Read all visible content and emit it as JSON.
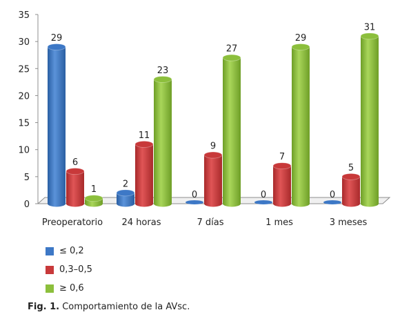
{
  "chart_data": {
    "type": "bar",
    "categories": [
      "Preoperatorio",
      "24 horas",
      "7 días",
      "1 mes",
      "3 meses"
    ],
    "series": [
      {
        "name": "≤ 0,2",
        "color": "#3d78c6",
        "values": [
          29,
          2,
          0,
          0,
          0
        ]
      },
      {
        "name": "0,3–0,5",
        "color": "#c8393a",
        "values": [
          6,
          11,
          9,
          7,
          5
        ]
      },
      {
        "name": "≥ 0,6",
        "color": "#8cbf3c",
        "values": [
          1,
          23,
          27,
          29,
          31
        ]
      }
    ],
    "ylim": [
      0,
      35
    ],
    "yticks": [
      0,
      5,
      10,
      15,
      20,
      25,
      30,
      35
    ],
    "grid": false,
    "legend_position": "bottom-left",
    "style": "3d-cylinder"
  },
  "caption": {
    "label": "Fig. 1.",
    "text": "Comportamiento de la AVsc."
  }
}
